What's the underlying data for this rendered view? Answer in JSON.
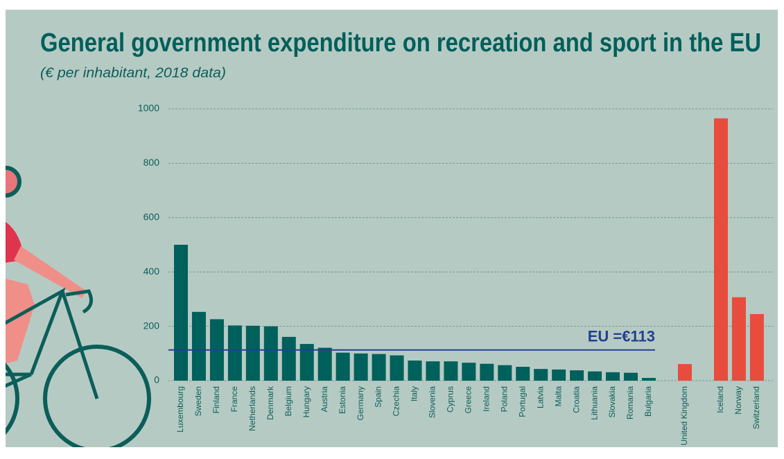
{
  "chart_data": {
    "type": "bar",
    "title": "General government expenditure on recreation and sport in the EU",
    "subtitle": "(€ per inhabitant, 2018 data)",
    "ylim": [
      0,
      1000
    ],
    "yticks": [
      0,
      200,
      400,
      600,
      800,
      1000
    ],
    "grid": true,
    "groups": [
      {
        "color": "#00605b",
        "categories": [
          "Luxembourg",
          "Sweden",
          "Finland",
          "France",
          "Netherlands",
          "Denmark",
          "Belgium",
          "Hungary",
          "Austria",
          "Estonia",
          "Germany",
          "Spain",
          "Czechia",
          "Italy",
          "Slovenia",
          "Cyprus",
          "Greece",
          "Ireland",
          "Poland",
          "Portugal",
          "Latvia",
          "Malta",
          "Croatia",
          "Lithuania",
          "Slovakia",
          "Romania",
          "Bulgaria"
        ],
        "values": [
          500,
          253,
          226,
          203,
          202,
          200,
          161,
          135,
          121,
          103,
          100,
          98,
          93,
          74,
          71,
          71,
          66,
          62,
          57,
          51,
          43,
          41,
          38,
          34,
          31,
          29,
          10
        ]
      },
      {
        "color": "#e84c3d",
        "categories": [
          "United Kingdom"
        ],
        "values": [
          61
        ]
      },
      {
        "color": "#e84c3d",
        "categories": [
          "Iceland",
          "Norway",
          "Switzerland"
        ],
        "values": [
          965,
          307,
          245
        ]
      }
    ],
    "reference_line": {
      "value": 113,
      "label": "EU =€113",
      "color": "#23408e"
    }
  }
}
